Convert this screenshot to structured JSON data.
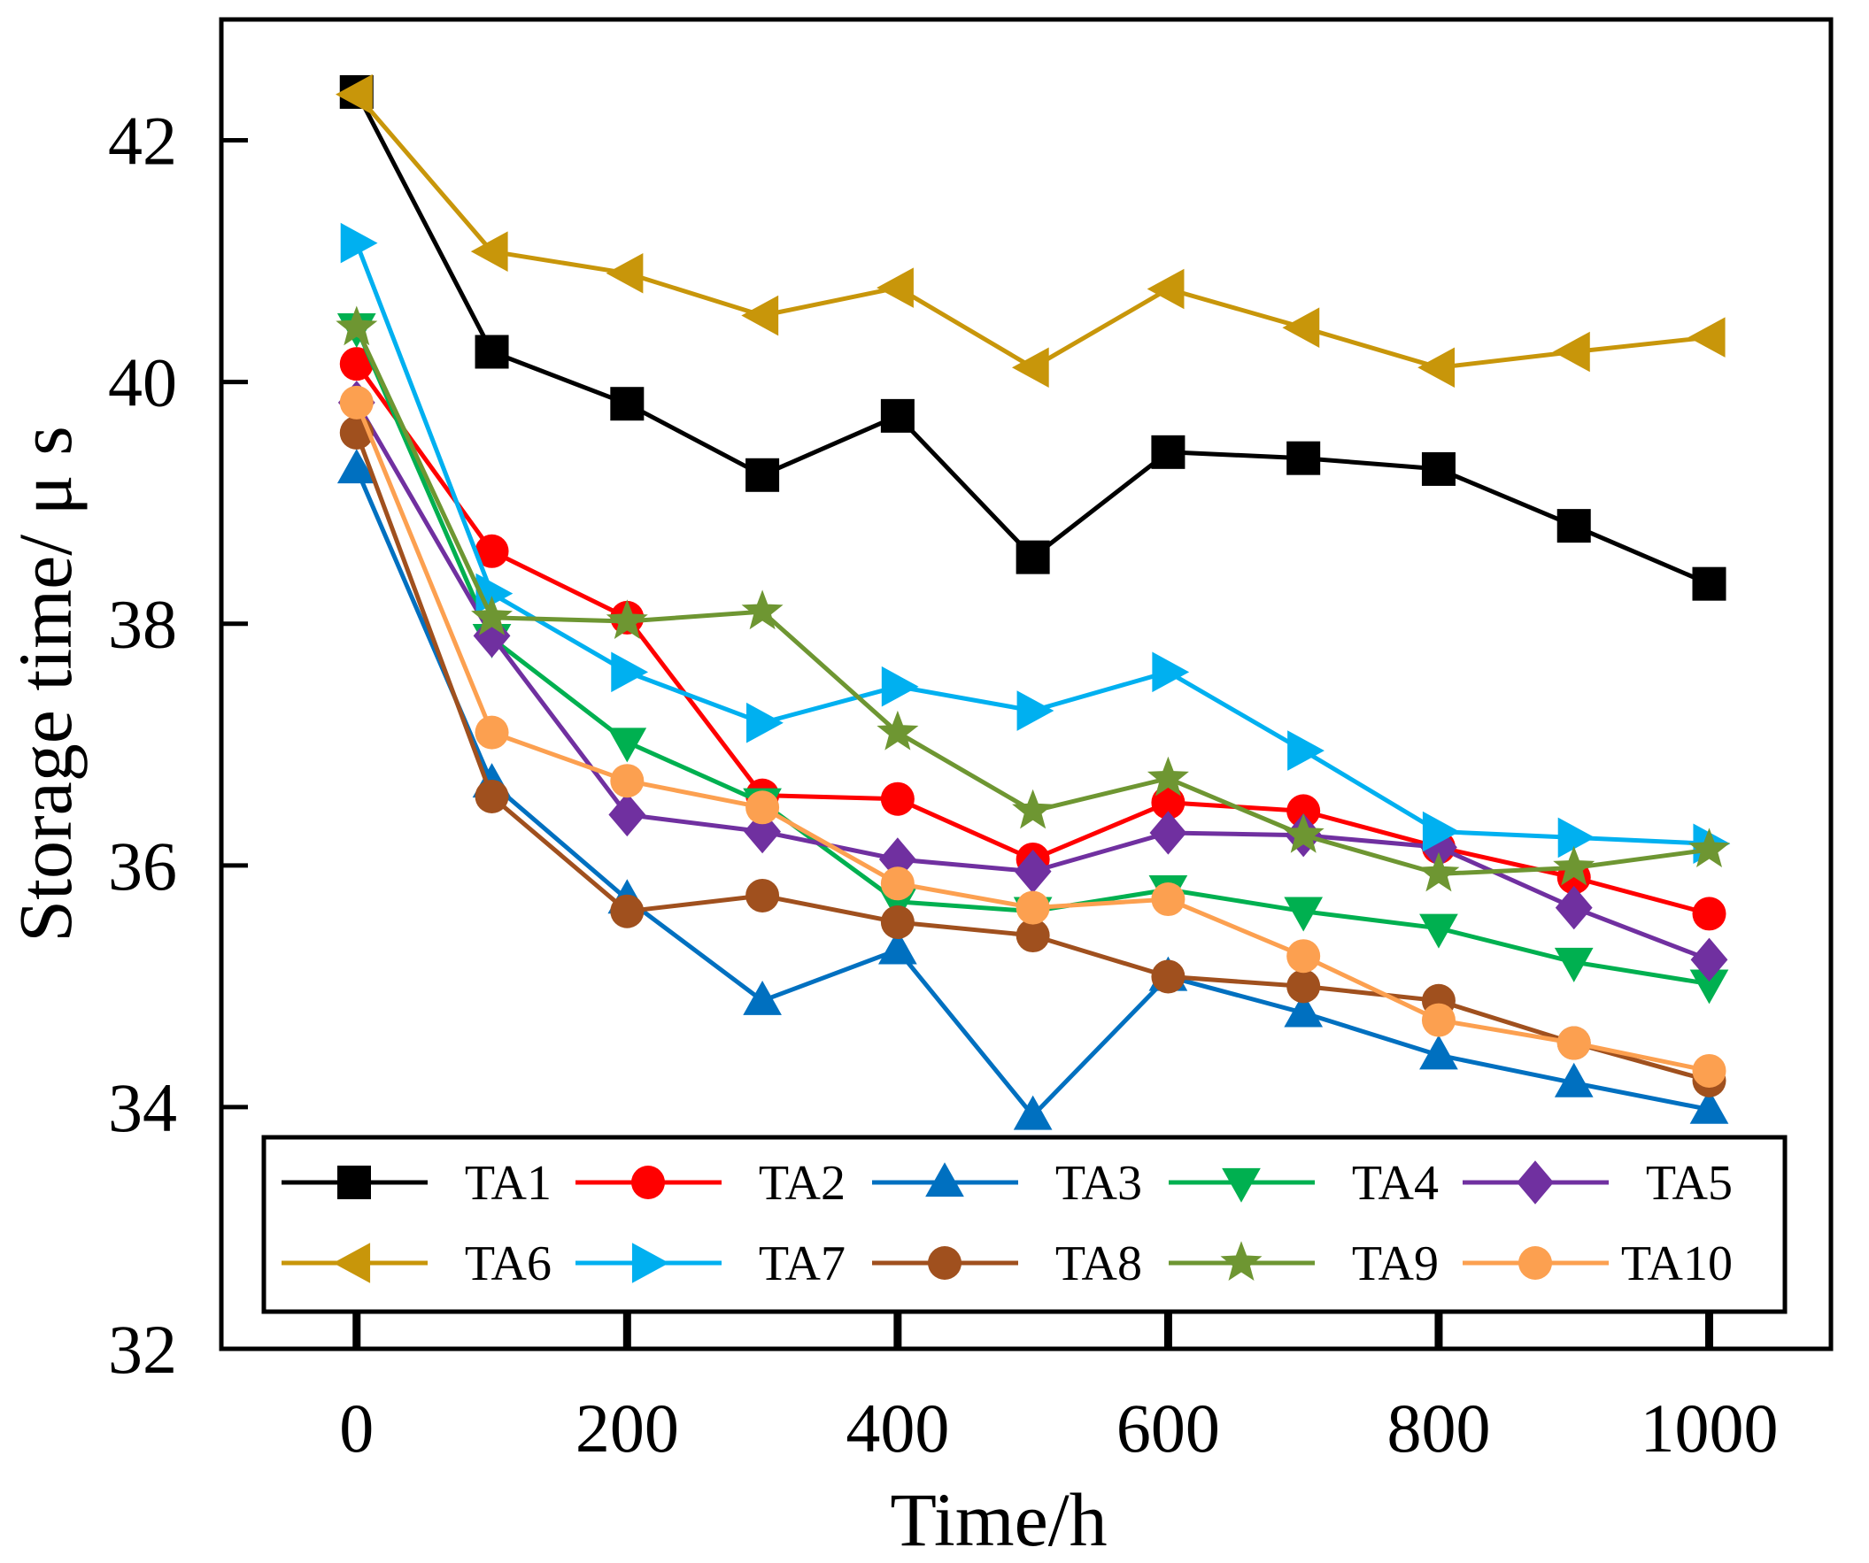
{
  "chart_data": {
    "type": "line",
    "title": "",
    "xlabel": "Time/h",
    "ylabel": "Storage time/ μ s",
    "xlim": [
      -100,
      1090
    ],
    "ylim": [
      32,
      43
    ],
    "x_ticks": [
      0,
      200,
      400,
      600,
      800,
      1000
    ],
    "x_tick_labels": [
      "0",
      "200",
      "400",
      "600",
      "800",
      "1000"
    ],
    "y_ticks": [
      32,
      34,
      36,
      38,
      40,
      42
    ],
    "y_tick_labels": [
      "32",
      "34",
      "36",
      "38",
      "40",
      "42"
    ],
    "x": [
      0,
      100,
      200,
      300,
      400,
      500,
      600,
      700,
      800,
      900,
      1000
    ],
    "grid": false,
    "legend_position": "bottom, inside plot, 2 rows × 5 columns",
    "series": [
      {
        "name": "TA1",
        "color": "#000000",
        "marker": "square",
        "values": [
          42.4,
          40.25,
          39.82,
          39.23,
          39.72,
          38.55,
          39.42,
          39.37,
          39.28,
          38.81,
          38.33
        ]
      },
      {
        "name": "TA2",
        "color": "#ff0000",
        "marker": "circle",
        "values": [
          40.15,
          38.6,
          38.05,
          36.58,
          36.55,
          36.05,
          36.52,
          36.45,
          36.15,
          35.9,
          35.6
        ]
      },
      {
        "name": "TA3",
        "color": "#0070c0",
        "marker": "triangle-up",
        "values": [
          39.28,
          36.68,
          35.72,
          34.88,
          35.3,
          33.93,
          35.08,
          34.78,
          34.43,
          34.2,
          33.98
        ]
      },
      {
        "name": "TA4",
        "color": "#00b050",
        "marker": "triangle-down",
        "values": [
          40.45,
          37.88,
          37.02,
          36.52,
          35.7,
          35.62,
          35.8,
          35.62,
          35.48,
          35.2,
          35.02
        ]
      },
      {
        "name": "TA5",
        "color": "#7030a0",
        "marker": "diamond",
        "values": [
          39.83,
          37.9,
          36.42,
          36.28,
          36.05,
          35.95,
          36.27,
          36.25,
          36.15,
          35.65,
          35.22
        ]
      },
      {
        "name": "TA6",
        "color": "#c8960a",
        "marker": "triangle-left",
        "values": [
          42.38,
          41.08,
          40.9,
          40.55,
          40.78,
          40.12,
          40.77,
          40.45,
          40.12,
          40.25,
          40.37
        ]
      },
      {
        "name": "TA7",
        "color": "#00b0f0",
        "marker": "triangle-right",
        "values": [
          41.15,
          38.25,
          37.6,
          37.18,
          37.48,
          37.28,
          37.6,
          36.95,
          36.28,
          36.23,
          36.18
        ]
      },
      {
        "name": "TA8",
        "color": "#a0501e",
        "marker": "circle",
        "values": [
          39.58,
          36.57,
          35.62,
          35.75,
          35.53,
          35.42,
          35.08,
          35.0,
          34.88,
          34.53,
          34.22
        ]
      },
      {
        "name": "TA9",
        "color": "#6e9632",
        "marker": "star",
        "values": [
          40.45,
          38.05,
          38.02,
          38.1,
          37.1,
          36.45,
          36.72,
          36.25,
          35.93,
          35.98,
          36.13
        ]
      },
      {
        "name": "TA10",
        "color": "#fca050",
        "marker": "circle",
        "values": [
          39.83,
          37.1,
          36.7,
          36.48,
          35.85,
          35.65,
          35.72,
          35.25,
          34.72,
          34.53,
          34.3
        ]
      }
    ]
  }
}
